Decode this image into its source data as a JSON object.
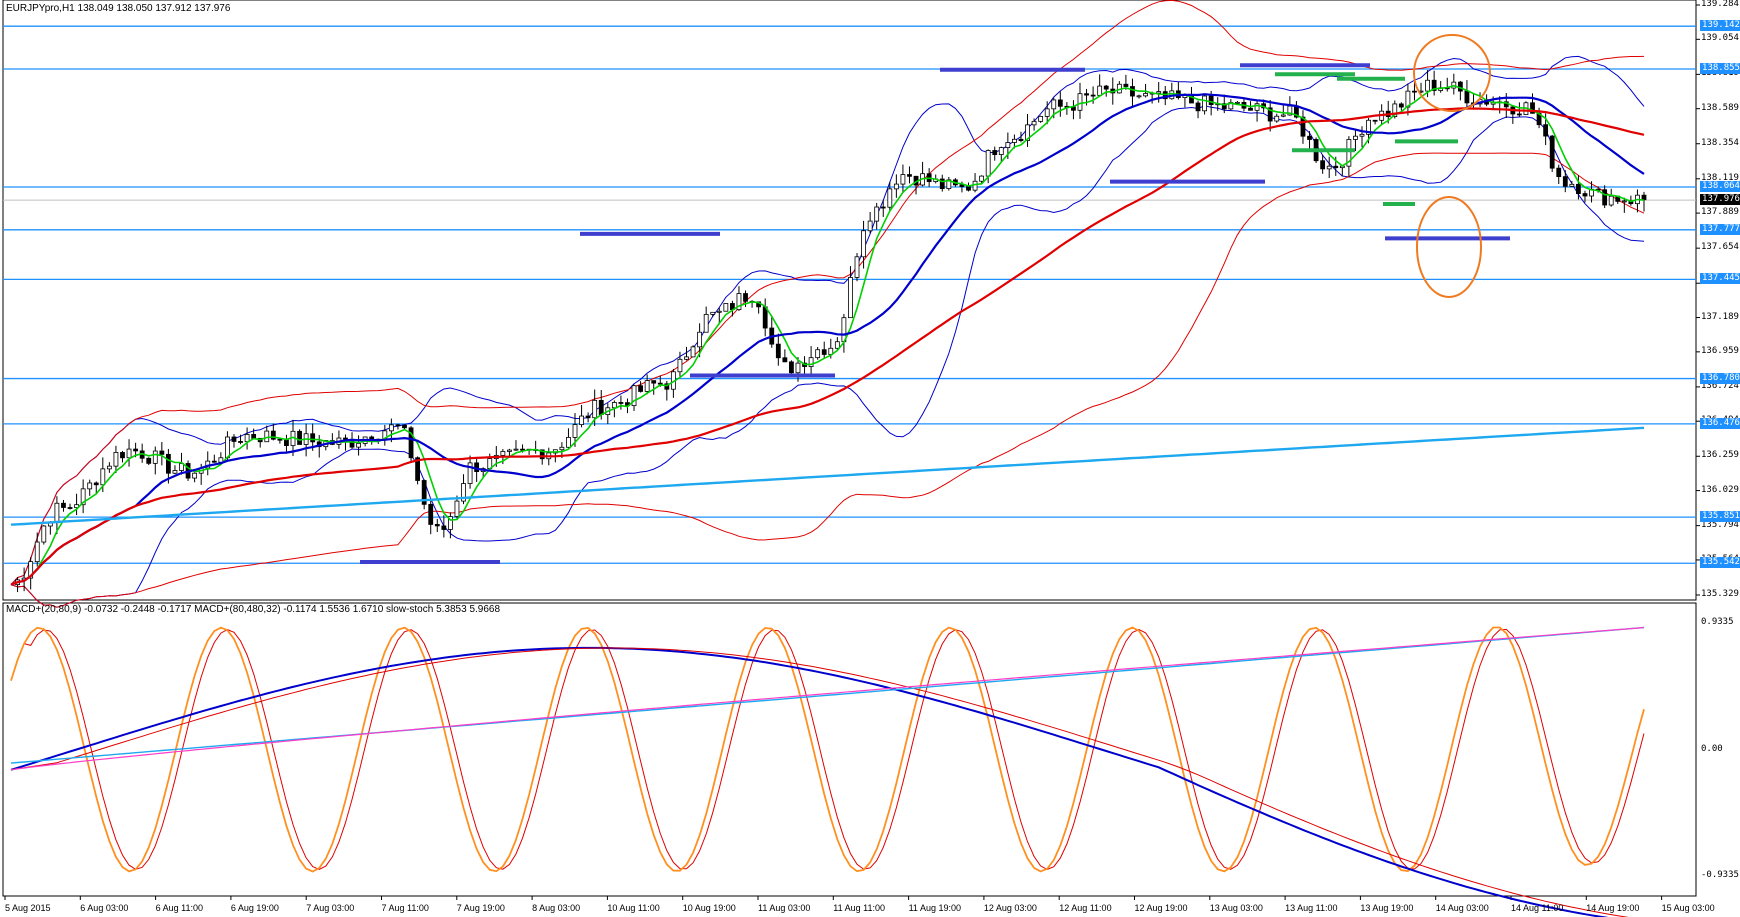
{
  "window": {
    "header": "EURJPYpro,H1  138.049 138.050 137.912 137.976",
    "indicator_header": "MACD+(20,80,9) -0.0732 -0.2448 -0.1717  MACD+(80,480,32) -0.1174 1.5536 1.6710  slow-stoch 5.3853 5.9668"
  },
  "price_axis": [
    "139.284",
    "139.054",
    "138.819",
    "138.589",
    "138.354",
    "138.119",
    "137.889",
    "137.654",
    "137.419",
    "137.189",
    "136.959",
    "136.724",
    "136.494",
    "136.259",
    "136.029",
    "135.794",
    "135.564",
    "135.329"
  ],
  "level_labels": [
    "139.142",
    "138.855",
    "138.064",
    "137.777",
    "137.445",
    "136.780",
    "136.476",
    "135.851",
    "135.542"
  ],
  "current_price": "137.976",
  "indicator_axis": [
    "0.9335",
    "0.00",
    "-0.9335"
  ],
  "time_axis": [
    "5 Aug 2015",
    "6 Aug 03:00",
    "6 Aug 11:00",
    "6 Aug 19:00",
    "7 Aug 03:00",
    "7 Aug 11:00",
    "7 Aug 19:00",
    "8 Aug 03:00",
    "10 Aug 11:00",
    "10 Aug 19:00",
    "11 Aug 03:00",
    "11 Aug 11:00",
    "11 Aug 19:00",
    "12 Aug 03:00",
    "12 Aug 11:00",
    "12 Aug 19:00",
    "13 Aug 03:00",
    "13 Aug 11:00",
    "13 Aug 19:00",
    "14 Aug 03:00",
    "14 Aug 11:00",
    "14 Aug 19:00",
    "15 Aug 03:00"
  ],
  "chart_data": [
    {
      "type": "line",
      "symbol": "EURJPYpro",
      "timeframe": "H1",
      "ohlc_last": {
        "open": 138.049,
        "high": 138.05,
        "low": 137.912,
        "close": 137.976
      },
      "ylim": [
        135.329,
        139.284
      ],
      "horizontal_levels": [
        139.142,
        138.855,
        138.064,
        137.777,
        137.445,
        136.78,
        136.476,
        135.851,
        135.542
      ],
      "colors": {
        "levels": "#1e90ff",
        "fast_ma": "#00d000",
        "mid_ma": "#0000cc",
        "slow_ma": "#e00000",
        "long_ma": "#1ea8f0",
        "bands_blue": "#0000cc",
        "bands_red": "#e00000",
        "support_resistance": "#3f3fcf",
        "green_marks": "#22b14c",
        "annotation": "#f07a20"
      }
    },
    {
      "type": "line",
      "name": "MACD+ / slow-stoch",
      "ylim": [
        -0.9335,
        0.9335
      ],
      "values": {
        "macd_fast": [
          -0.0732,
          -0.2448,
          -0.1717
        ],
        "macd_slow": [
          -0.1174,
          1.5536,
          1.671
        ],
        "slow_stoch": [
          5.3853,
          5.9668
        ]
      }
    }
  ]
}
